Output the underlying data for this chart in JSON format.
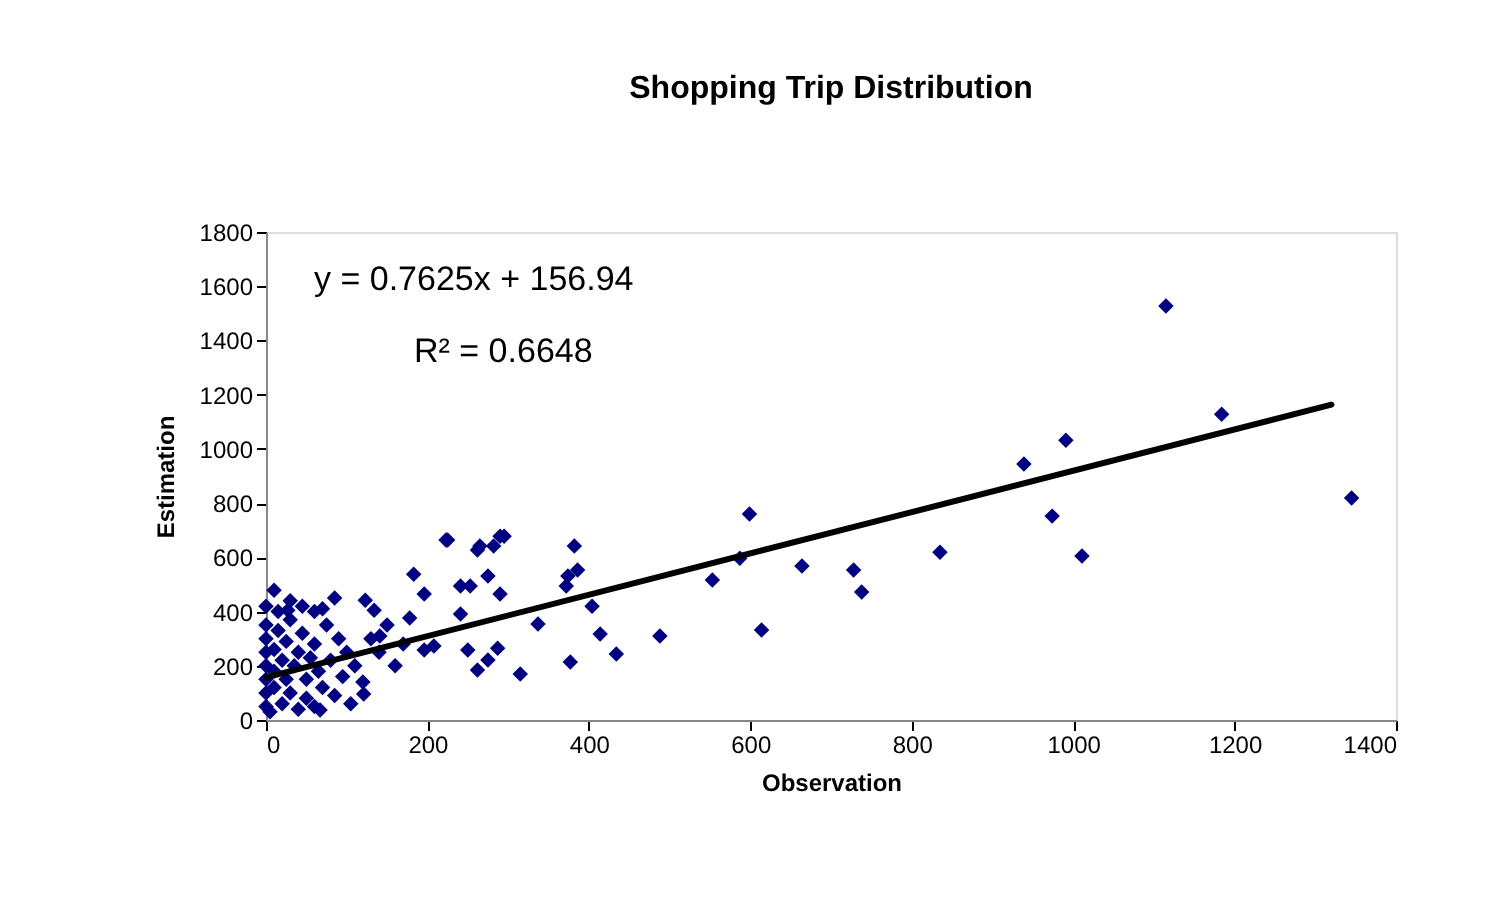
{
  "chart_data": {
    "type": "scatter",
    "title": "Shopping Trip Distribution",
    "xlabel": "Observation",
    "ylabel": "Estimation",
    "xlim": [
      0,
      1400
    ],
    "xticks": [
      0,
      200,
      400,
      600,
      800,
      1000,
      1200,
      1400
    ],
    "ylim": [
      0,
      1800
    ],
    "yticks": [
      0,
      200,
      400,
      600,
      800,
      1000,
      1200,
      1400,
      1600,
      1800
    ],
    "grid": false,
    "annotations": [
      "y = 0.7625x + 156.94",
      "R² = 0.6648"
    ],
    "series": [
      {
        "color": "#000080",
        "marker": "diamond",
        "x": [
          1115,
          939,
          991,
          974,
          1011,
          1184,
          1345,
          599,
          587,
          553,
          664,
          728,
          738,
          835,
          614,
          488,
          434,
          414,
          404,
          377,
          382,
          386,
          372,
          315,
          337,
          290,
          282,
          262,
          225,
          183,
          196,
          241,
          275,
          290,
          241,
          178,
          262,
          275,
          287,
          250,
          208,
          196,
          223,
          265,
          295,
          374,
          123,
          253,
          134,
          141,
          121,
          67,
          10,
          27,
          0,
          0,
          0,
          0,
          0,
          0,
          0,
          0,
          5,
          10,
          10,
          10,
          15,
          15,
          20,
          20,
          25,
          25,
          30,
          30,
          35,
          40,
          40,
          45,
          50,
          50,
          55,
          60,
          60,
          65,
          70,
          75,
          80,
          85,
          90,
          95,
          100,
          105,
          110,
          120,
          130,
          140,
          150,
          160,
          170,
          60,
          30,
          45,
          70,
          85
        ],
        "values": [
          1527,
          944,
          1032,
          752,
          605,
          1128,
          819,
          760,
          597,
          516,
          568,
          553,
          472,
          619,
          332,
          310,
          243,
          317,
          420,
          214,
          642,
          553,
          494,
          170,
          354,
          678,
          642,
          627,
          664,
          538,
          465,
          494,
          531,
          465,
          391,
          376,
          184,
          221,
          265,
          258,
          273,
          258,
          664,
          642,
          678,
          531,
          442,
          494,
          405,
          310,
          96,
          37,
          479,
          405,
          50,
          100,
          150,
          200,
          250,
          300,
          350,
          420,
          30,
          120,
          180,
          260,
          330,
          400,
          60,
          220,
          150,
          290,
          100,
          370,
          200,
          250,
          40,
          320,
          150,
          80,
          230,
          280,
          50,
          180,
          120,
          350,
          220,
          90,
          300,
          160,
          250,
          60,
          200,
          140,
          300,
          250,
          350,
          200,
          280,
          400,
          440,
          420,
          410,
          450
        ]
      },
      {
        "type": "line",
        "color": "#000000",
        "marker": "none",
        "line_style": "solid",
        "x": [
          0,
          1320
        ],
        "values": [
          157,
          1163
        ]
      }
    ]
  }
}
